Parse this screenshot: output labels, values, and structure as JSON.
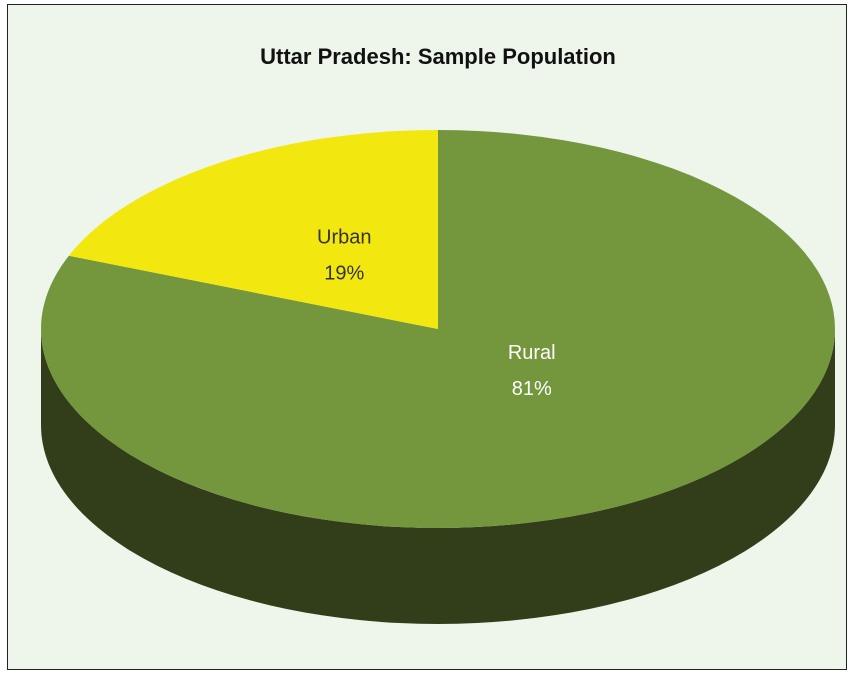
{
  "chart_data": {
    "type": "pie",
    "title": "Uttar Pradesh: Sample Population",
    "categories": [
      "Rural",
      "Urban"
    ],
    "values": [
      81,
      19
    ],
    "value_labels": [
      "81%",
      "19%"
    ],
    "colors": [
      "#74963c",
      "#f2e80f"
    ],
    "side_color": "#323d19"
  }
}
